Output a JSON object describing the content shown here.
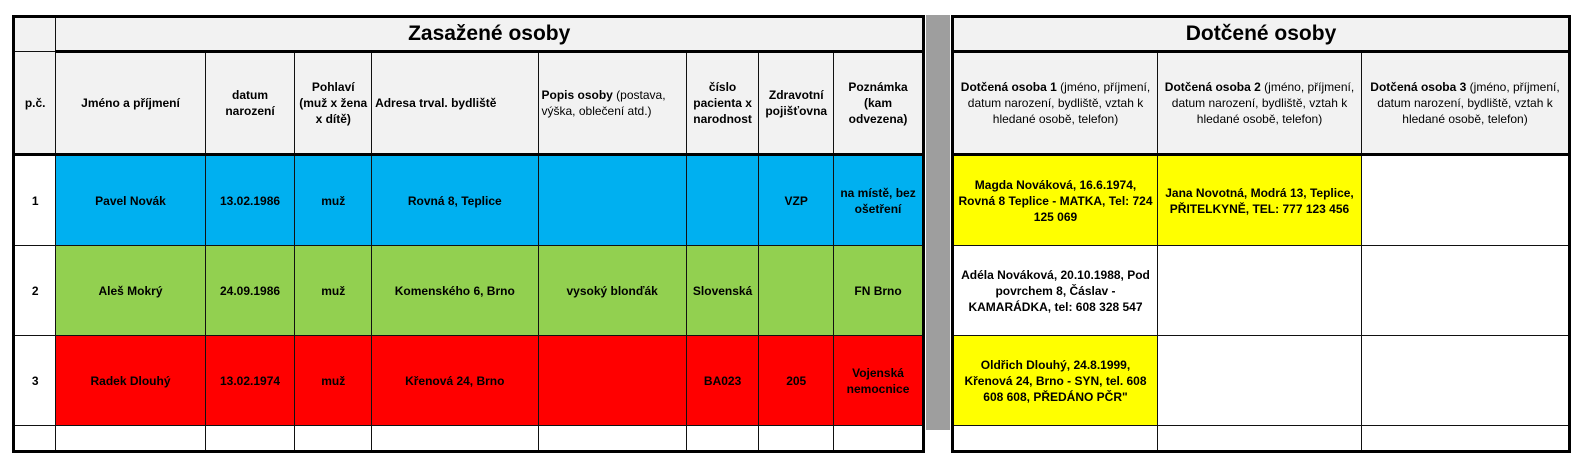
{
  "left": {
    "title": "Zasažené osoby",
    "headers": {
      "pc": "p.č.",
      "name": "Jméno a příjmení",
      "dob": "datum narození",
      "sex": "Pohlaví (muž x žena x dítě)",
      "address": "Adresa trval. bydliště",
      "desc_bold": "Popis osoby",
      "desc_rest": " (postava, výška, oblečení atd.)",
      "patient": "číslo pacienta x narodnost",
      "insurance": "Zdravotní pojišťovna",
      "note": "Poznámka (kam odvezena)"
    },
    "rows": [
      {
        "pc": "1",
        "name": "Pavel Novák",
        "dob": "13.02.1986",
        "sex": "muž",
        "address": "Rovná 8, Teplice",
        "desc": "",
        "patient": "",
        "insurance": "VZP",
        "note": "na místě, bez ošetření",
        "color": "#00b0f0"
      },
      {
        "pc": "2",
        "name": "Aleš Mokrý",
        "dob": "24.09.1986",
        "sex": "muž",
        "address": "Komenského 6, Brno",
        "desc": "vysoký blonďák",
        "patient": "Slovenská",
        "insurance": "",
        "note": "FN Brno",
        "color": "#92d050"
      },
      {
        "pc": "3",
        "name": "Radek Dlouhý",
        "dob": "13.02.1974",
        "sex": "muž",
        "address": "Křenová 24, Brno",
        "desc": "",
        "patient": "BA023",
        "insurance": "205",
        "note": "Vojenská nemocnice",
        "color": "#ff0000"
      }
    ]
  },
  "right": {
    "title": "Dotčené osoby",
    "headers": {
      "p1_bold": "Dotčená osoba 1",
      "p2_bold": "Dotčená osoba 2",
      "p3_bold": "Dotčená osoba 3",
      "rest": " (jméno, příjmení, datum narození, bydliště, vztah k hledané osobě, telefon)"
    },
    "rows": [
      {
        "p1": "Magda Nováková, 16.6.1974, Rovná 8 Teplice - MATKA, Tel: 724 125 069",
        "p2": "Jana Novotná, Modrá 13, Teplice, PŘITELKYNĚ, TEL: 777 123 456",
        "p3": ""
      },
      {
        "p1": "Adéla Nováková, 20.10.1988, Pod povrchem 8, Čáslav - KAMARÁDKA, tel: 608 328 547",
        "p2": "",
        "p3": ""
      },
      {
        "p1": "Oldřich Dlouhý, 24.8.1999, Křenová 24, Brno - SYN, tel. 608 608 608, PŘEDÁNO PČR\"",
        "p2": "",
        "p3": ""
      }
    ]
  },
  "colors": {
    "yellow": "#ffff00",
    "header_bg": "#f2f2f2",
    "separator": "#9e9e9e"
  }
}
